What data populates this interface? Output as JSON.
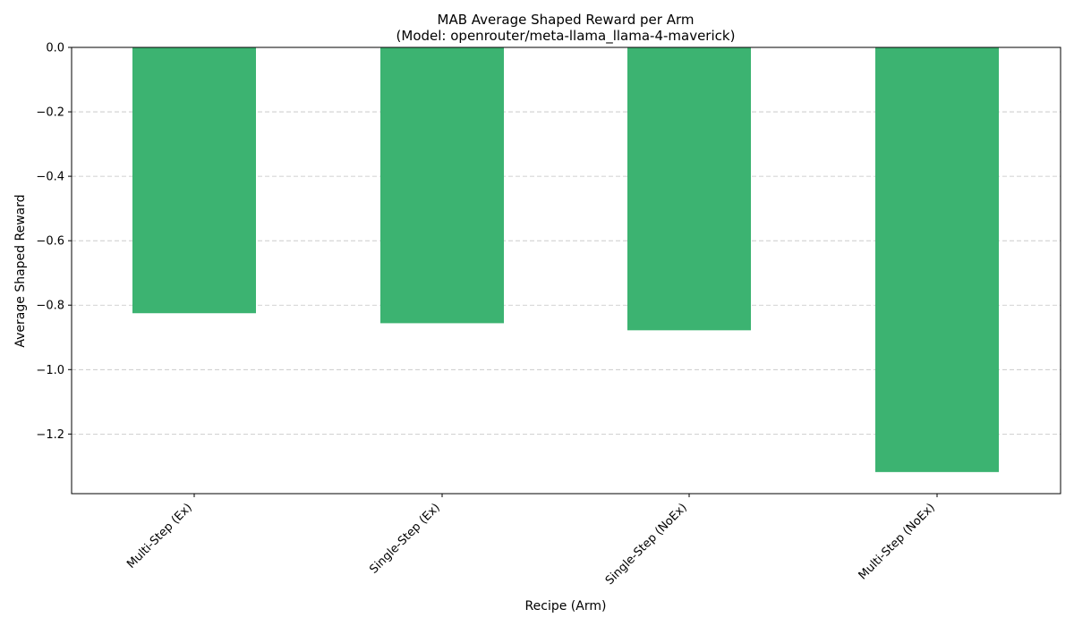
{
  "chart_data": {
    "type": "bar",
    "title": "MAB Average Shaped Reward per Arm",
    "subtitle": "(Model: openrouter/meta-llama_llama-4-maverick)",
    "xlabel": "Recipe (Arm)",
    "ylabel": "Average Shaped Reward",
    "categories": [
      "Multi-Step (Ex)",
      "Single-Step (Ex)",
      "Single-Step (NoEx)",
      "Multi-Step (NoEx)"
    ],
    "values": [
      -0.825,
      -0.856,
      -0.878,
      -1.318
    ],
    "ylim": [
      -1.385,
      0.0
    ],
    "yticks": [
      0.0,
      -0.2,
      -0.4,
      -0.6,
      -0.8,
      -1.0,
      -1.2
    ],
    "ytick_labels": [
      "0.0",
      "−0.2",
      "−0.4",
      "−0.6",
      "−0.8",
      "−1.0",
      "−1.2"
    ],
    "grid": "y-dashed",
    "bar_color": "#3cb371"
  }
}
